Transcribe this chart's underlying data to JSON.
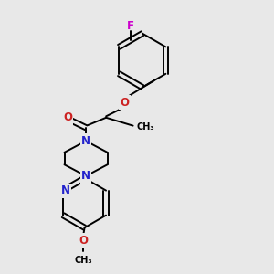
{
  "bg_color": "#e8e8e8",
  "bond_color": "#000000",
  "N_color": "#2222cc",
  "O_color": "#cc2222",
  "F_color": "#cc00cc",
  "line_width": 1.4,
  "font_size": 8.5,
  "fig_width": 3.0,
  "fig_height": 3.0,
  "xlim": [
    0,
    10
  ],
  "ylim": [
    0,
    10
  ]
}
